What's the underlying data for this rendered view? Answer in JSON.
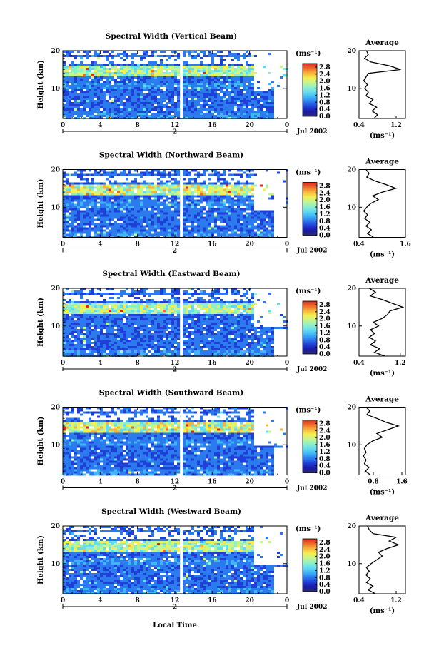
{
  "figure": {
    "xlabel": "Local Time",
    "date_label": "Jul 2002",
    "average_title": "Average",
    "colorbar_unit": "(ms⁻¹)",
    "avg_unit": "(ms⁻¹)"
  },
  "colorscale": [
    "#2a2a6e",
    "#1a1aa8",
    "#1f3fd6",
    "#2b7bef",
    "#3fb6f5",
    "#64dcef",
    "#8ff0c8",
    "#c6f58e",
    "#f5ee4f",
    "#f7b43a",
    "#f06a2a",
    "#d92a20"
  ],
  "chart_data": [
    {
      "type": "heatmap",
      "title": "Spectral Width (Vertical Beam)",
      "ylabel": "Height (km)",
      "xlabel": "Local Time",
      "x_ticks": [
        "0",
        "4",
        "8",
        "12",
        "16",
        "20",
        "0"
      ],
      "x_day_ticks": [
        "2"
      ],
      "xlim": [
        0,
        24
      ],
      "y_ticks": [
        "10",
        "20"
      ],
      "ylim": [
        2,
        20
      ],
      "colorbar_ticks": [
        "0.0",
        "0.4",
        "0.8",
        "1.2",
        "1.6",
        "2.0",
        "2.4",
        "2.8"
      ],
      "colorbar_range": [
        0,
        3
      ],
      "avg_x_ticks": [
        "0.4",
        "1.2"
      ],
      "avg_xlim": [
        0.4,
        1.4
      ],
      "avg_profile": [
        [
          0.72,
          2
        ],
        [
          0.8,
          3
        ],
        [
          0.68,
          4
        ],
        [
          0.78,
          5
        ],
        [
          0.62,
          6
        ],
        [
          0.7,
          7
        ],
        [
          0.55,
          8
        ],
        [
          0.6,
          9
        ],
        [
          0.52,
          10
        ],
        [
          0.58,
          11
        ],
        [
          0.5,
          12
        ],
        [
          0.55,
          13
        ],
        [
          0.6,
          14
        ],
        [
          1.3,
          15
        ],
        [
          1.05,
          16
        ],
        [
          0.65,
          17
        ],
        [
          0.52,
          18
        ],
        [
          0.6,
          19
        ],
        [
          0.56,
          20
        ]
      ]
    },
    {
      "type": "heatmap",
      "title": "Spectral Width (Northward Beam)",
      "ylabel": "Height (km)",
      "xlabel": "Local Time",
      "x_ticks": [
        "0",
        "4",
        "8",
        "12",
        "16",
        "20",
        "0"
      ],
      "x_day_ticks": [
        "2"
      ],
      "xlim": [
        0,
        24
      ],
      "y_ticks": [
        "10",
        "20"
      ],
      "ylim": [
        2,
        20
      ],
      "colorbar_ticks": [
        "0.0",
        "0.4",
        "0.8",
        "1.2",
        "1.6",
        "2.0",
        "2.4",
        "2.8"
      ],
      "colorbar_range": [
        0,
        3
      ],
      "avg_x_ticks": [
        "0.4",
        "1.6"
      ],
      "avg_xlim": [
        0.4,
        1.6
      ],
      "avg_profile": [
        [
          0.78,
          2
        ],
        [
          0.62,
          3
        ],
        [
          0.72,
          4
        ],
        [
          0.58,
          5
        ],
        [
          0.68,
          6
        ],
        [
          0.55,
          7
        ],
        [
          0.62,
          8
        ],
        [
          0.52,
          9
        ],
        [
          0.6,
          10
        ],
        [
          0.7,
          11
        ],
        [
          0.9,
          12
        ],
        [
          0.75,
          13
        ],
        [
          1.0,
          14
        ],
        [
          1.35,
          15
        ],
        [
          1.1,
          16
        ],
        [
          0.8,
          17
        ],
        [
          0.6,
          18
        ],
        [
          0.66,
          19
        ],
        [
          0.58,
          20
        ]
      ]
    },
    {
      "type": "heatmap",
      "title": "Spectral Width (Eastward Beam)",
      "ylabel": "Height (km)",
      "xlabel": "Local Time",
      "x_ticks": [
        "0",
        "4",
        "8",
        "12",
        "16",
        "20",
        "0"
      ],
      "x_day_ticks": [
        "2"
      ],
      "xlim": [
        0,
        24
      ],
      "y_ticks": [
        "10",
        "20"
      ],
      "ylim": [
        2,
        20
      ],
      "colorbar_ticks": [
        "0.0",
        "0.4",
        "0.8",
        "1.2",
        "1.6",
        "2.0",
        "2.4",
        "2.8"
      ],
      "colorbar_range": [
        0,
        3
      ],
      "avg_x_ticks": [
        "0.4",
        "1.2"
      ],
      "avg_xlim": [
        0.4,
        1.3
      ],
      "avg_profile": [
        [
          0.9,
          2
        ],
        [
          0.7,
          3
        ],
        [
          0.8,
          4
        ],
        [
          0.62,
          5
        ],
        [
          0.72,
          6
        ],
        [
          0.6,
          7
        ],
        [
          0.7,
          8
        ],
        [
          0.62,
          9
        ],
        [
          0.78,
          10
        ],
        [
          0.68,
          11
        ],
        [
          0.85,
          12
        ],
        [
          0.95,
          13
        ],
        [
          1.0,
          14
        ],
        [
          1.25,
          15
        ],
        [
          1.05,
          16
        ],
        [
          0.85,
          17
        ],
        [
          0.62,
          18
        ],
        [
          0.72,
          19
        ],
        [
          0.6,
          20
        ]
      ]
    },
    {
      "type": "heatmap",
      "title": "Spectral Width (Southward Beam)",
      "ylabel": "Height (km)",
      "xlabel": "Local Time",
      "x_ticks": [
        "0",
        "4",
        "8",
        "12",
        "16",
        "20",
        "0"
      ],
      "x_day_ticks": [
        "2"
      ],
      "xlim": [
        0,
        24
      ],
      "y_ticks": [
        "10",
        "20"
      ],
      "ylim": [
        2,
        20
      ],
      "colorbar_ticks": [
        "0.0",
        "0.4",
        "0.8",
        "1.2",
        "1.6",
        "2.0",
        "2.4",
        "2.8"
      ],
      "colorbar_range": [
        0,
        3
      ],
      "avg_x_ticks": [
        "0.8",
        "1.6"
      ],
      "avg_xlim": [
        0.4,
        1.7
      ],
      "avg_profile": [
        [
          0.72,
          2
        ],
        [
          0.58,
          3
        ],
        [
          0.68,
          4
        ],
        [
          0.55,
          5
        ],
        [
          0.6,
          6
        ],
        [
          0.52,
          7
        ],
        [
          0.6,
          8
        ],
        [
          0.55,
          9
        ],
        [
          0.62,
          10
        ],
        [
          0.78,
          11
        ],
        [
          1.05,
          12
        ],
        [
          0.9,
          13
        ],
        [
          1.2,
          14
        ],
        [
          1.5,
          15
        ],
        [
          1.15,
          16
        ],
        [
          0.9,
          17
        ],
        [
          0.62,
          18
        ],
        [
          0.7,
          19
        ],
        [
          0.6,
          20
        ]
      ]
    },
    {
      "type": "heatmap",
      "title": "Spectral Width (Westward Beam)",
      "ylabel": "Height (km)",
      "xlabel": "Local Time",
      "x_ticks": [
        "0",
        "4",
        "8",
        "12",
        "16",
        "20",
        "0"
      ],
      "x_day_ticks": [
        "2"
      ],
      "xlim": [
        0,
        24
      ],
      "y_ticks": [
        "10",
        "20"
      ],
      "ylim": [
        2,
        20
      ],
      "colorbar_ticks": [
        "0.0",
        "0.4",
        "0.8",
        "1.2",
        "1.6",
        "2.0",
        "2.4",
        "2.8"
      ],
      "colorbar_range": [
        0,
        3
      ],
      "avg_x_ticks": [
        "0.4",
        "1.2"
      ],
      "avg_xlim": [
        0.4,
        1.4
      ],
      "avg_profile": [
        [
          0.75,
          2
        ],
        [
          0.6,
          3
        ],
        [
          0.7,
          4
        ],
        [
          0.56,
          5
        ],
        [
          0.64,
          6
        ],
        [
          0.55,
          7
        ],
        [
          0.62,
          8
        ],
        [
          0.56,
          9
        ],
        [
          0.66,
          10
        ],
        [
          0.78,
          11
        ],
        [
          0.9,
          12
        ],
        [
          0.82,
          13
        ],
        [
          1.0,
          14
        ],
        [
          1.25,
          15
        ],
        [
          1.05,
          16
        ],
        [
          1.2,
          17
        ],
        [
          0.7,
          18
        ],
        [
          0.62,
          19
        ],
        [
          0.58,
          20
        ]
      ]
    }
  ]
}
